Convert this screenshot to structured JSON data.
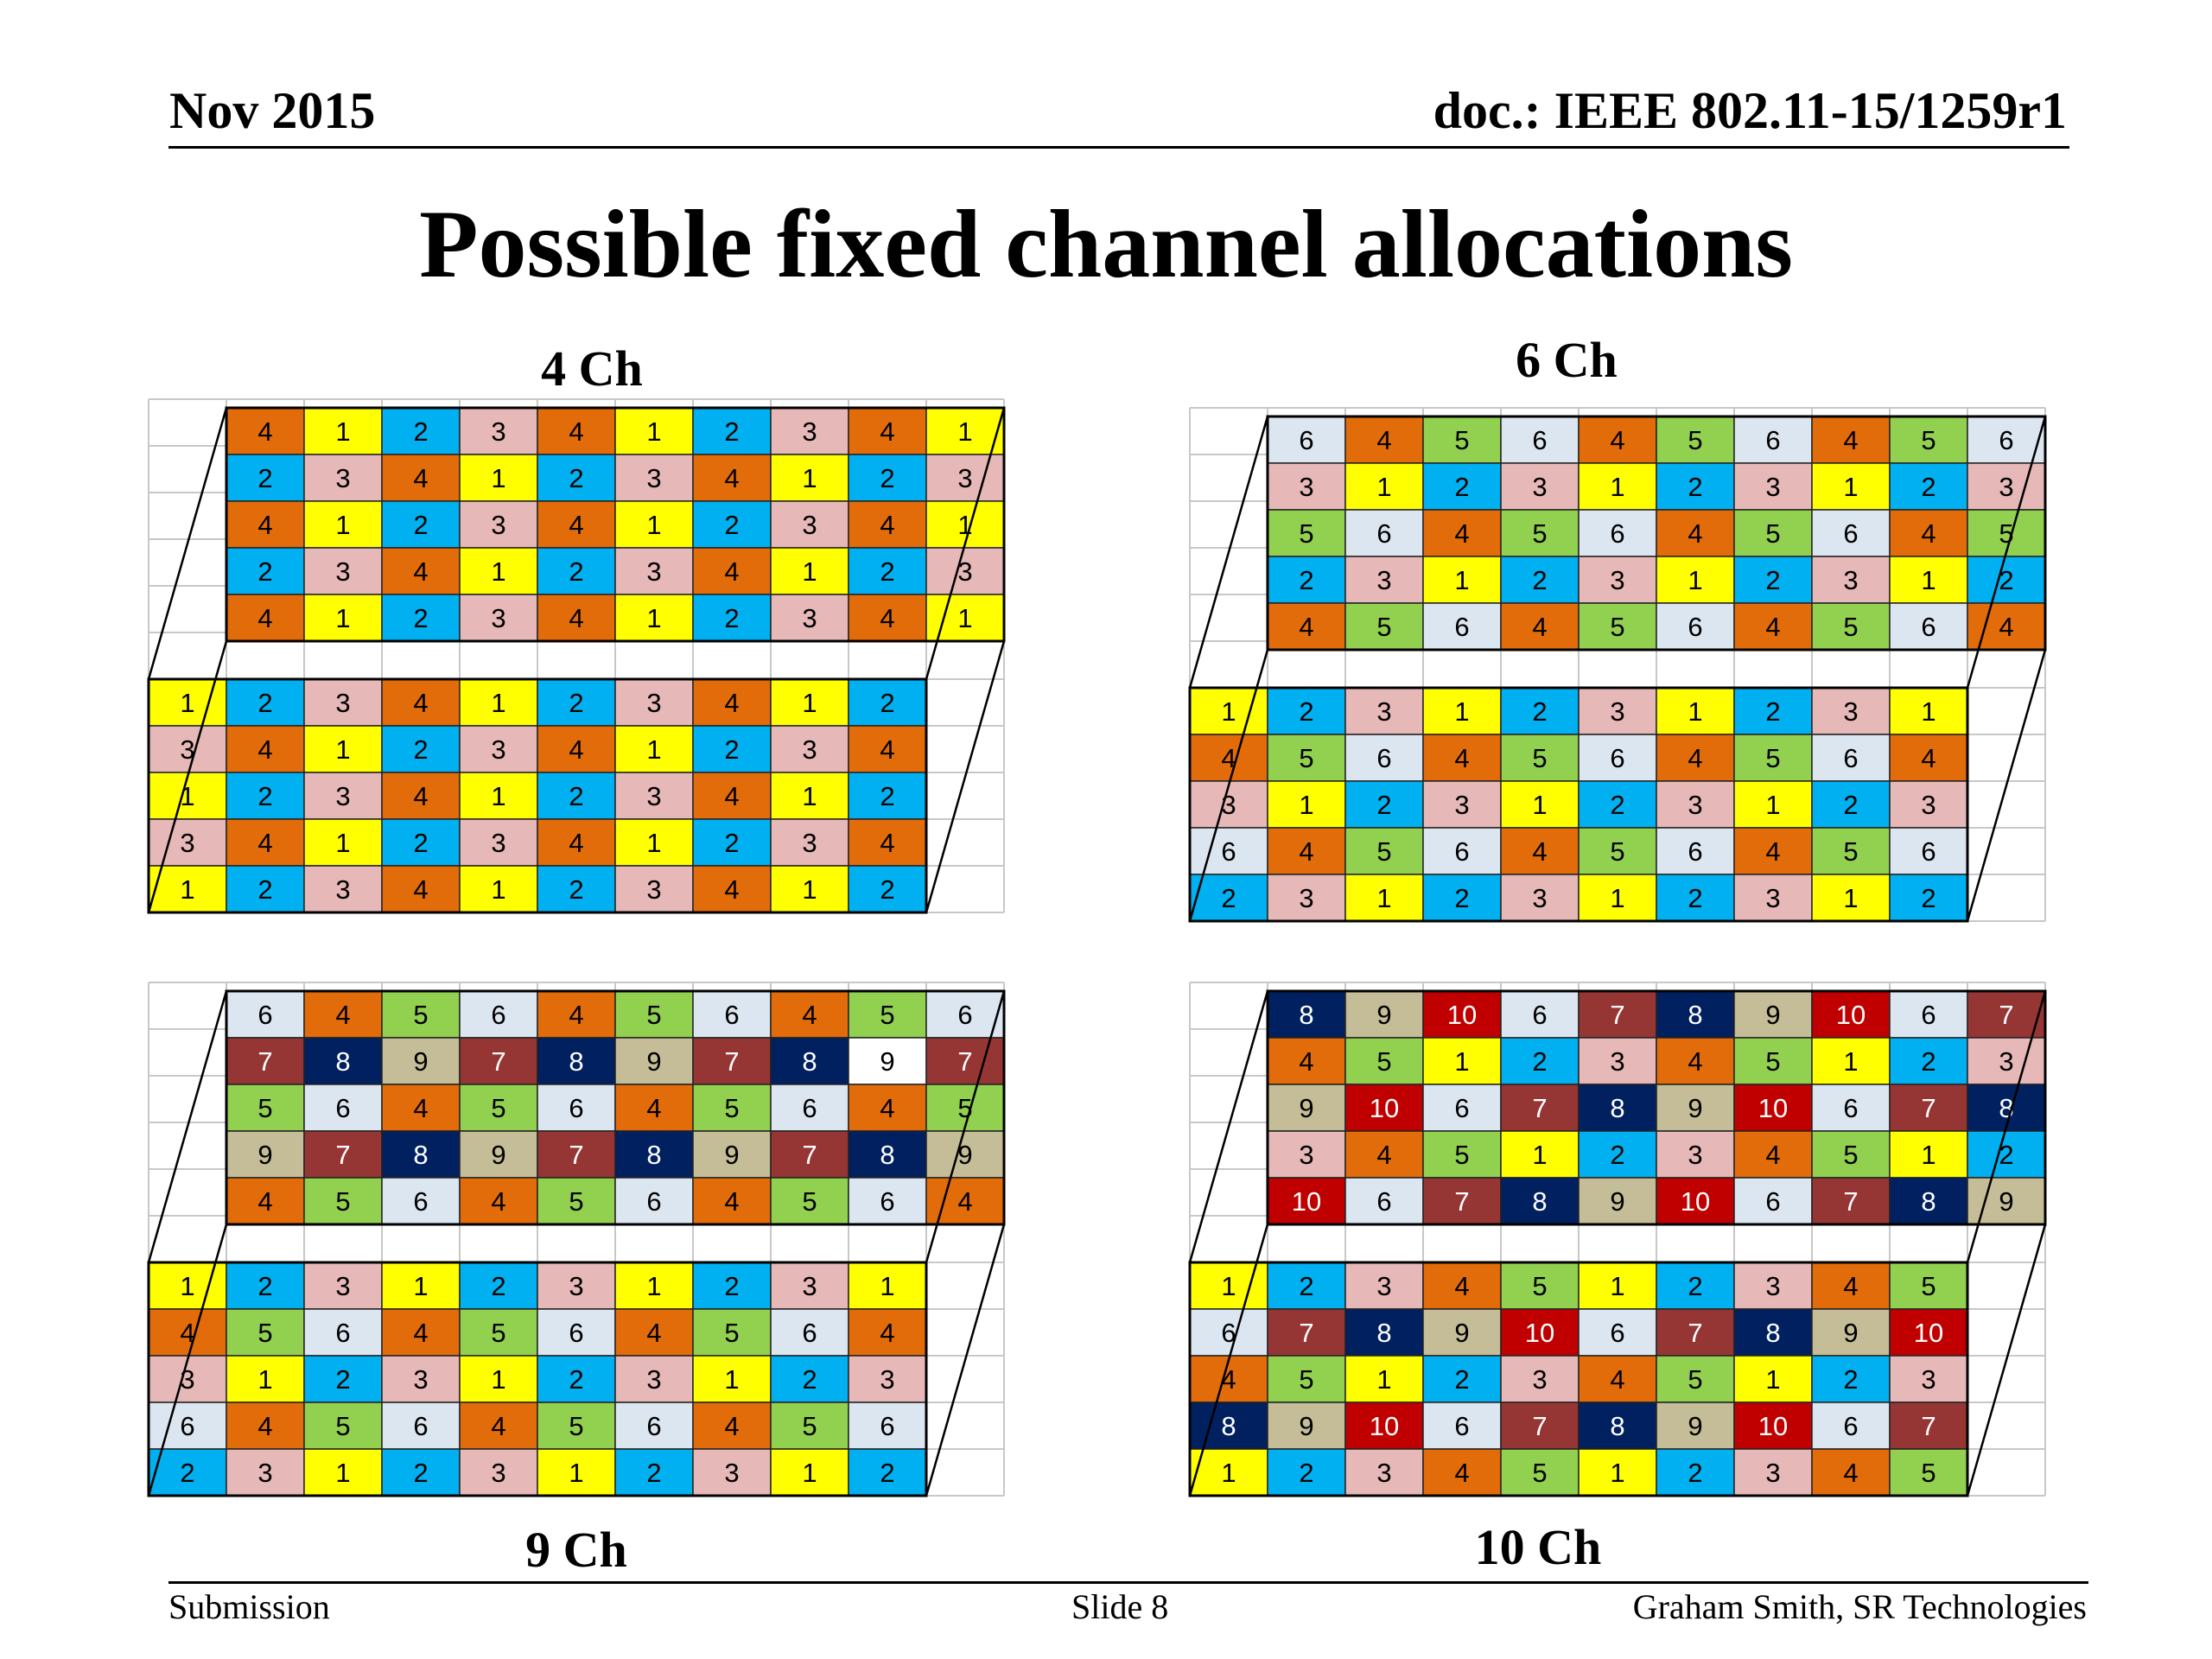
{
  "header": {
    "date": "Nov 2015",
    "doc_id": "doc.: IEEE 802.11-15/1259r1"
  },
  "title": "Possible fixed channel allocations",
  "footer": {
    "left": "Submission",
    "center": "Slide 8",
    "right": "Graham Smith, SR Technologies"
  },
  "colors": {
    "1": "#FFFF00",
    "2": "#00B0F0",
    "3": "#E6B8B7",
    "4": "#E26B0A",
    "5": "#92D050",
    "6": "#DCE6F1",
    "7": "#963634",
    "8": "#002060",
    "9": "#C4BD97",
    "10": "#C00000",
    "9w": "#FFFFFF"
  },
  "allocations": [
    {
      "label": "4 Ch",
      "upper": [
        [
          "4",
          "1",
          "2",
          "3",
          "4",
          "1",
          "2",
          "3",
          "4",
          "1"
        ],
        [
          "2",
          "3",
          "4",
          "1",
          "2",
          "3",
          "4",
          "1",
          "2",
          "3"
        ],
        [
          "4",
          "1",
          "2",
          "3",
          "4",
          "1",
          "2",
          "3",
          "4",
          "1"
        ],
        [
          "2",
          "3",
          "4",
          "1",
          "2",
          "3",
          "4",
          "1",
          "2",
          "3"
        ],
        [
          "4",
          "1",
          "2",
          "3",
          "4",
          "1",
          "2",
          "3",
          "4",
          "1"
        ]
      ],
      "lower": [
        [
          "1",
          "2",
          "3",
          "4",
          "1",
          "2",
          "3",
          "4",
          "1",
          "2"
        ],
        [
          "3",
          "4",
          "1",
          "2",
          "3",
          "4",
          "1",
          "2",
          "3",
          "4"
        ],
        [
          "1",
          "2",
          "3",
          "4",
          "1",
          "2",
          "3",
          "4",
          "1",
          "2"
        ],
        [
          "3",
          "4",
          "1",
          "2",
          "3",
          "4",
          "1",
          "2",
          "3",
          "4"
        ],
        [
          "1",
          "2",
          "3",
          "4",
          "1",
          "2",
          "3",
          "4",
          "1",
          "2"
        ]
      ]
    },
    {
      "label": "6 Ch",
      "upper": [
        [
          "6",
          "4",
          "5",
          "6",
          "4",
          "5",
          "6",
          "4",
          "5",
          "6"
        ],
        [
          "3",
          "1",
          "2",
          "3",
          "1",
          "2",
          "3",
          "1",
          "2",
          "3"
        ],
        [
          "5",
          "6",
          "4",
          "5",
          "6",
          "4",
          "5",
          "6",
          "4",
          "5"
        ],
        [
          "2",
          "3",
          "1",
          "2",
          "3",
          "1",
          "2",
          "3",
          "1",
          "2"
        ],
        [
          "4",
          "5",
          "6",
          "4",
          "5",
          "6",
          "4",
          "5",
          "6",
          "4"
        ]
      ],
      "lower": [
        [
          "1",
          "2",
          "3",
          "1",
          "2",
          "3",
          "1",
          "2",
          "3",
          "1"
        ],
        [
          "4",
          "5",
          "6",
          "4",
          "5",
          "6",
          "4",
          "5",
          "6",
          "4"
        ],
        [
          "3",
          "1",
          "2",
          "3",
          "1",
          "2",
          "3",
          "1",
          "2",
          "3"
        ],
        [
          "6",
          "4",
          "5",
          "6",
          "4",
          "5",
          "6",
          "4",
          "5",
          "6"
        ],
        [
          "2",
          "3",
          "1",
          "2",
          "3",
          "1",
          "2",
          "3",
          "1",
          "2"
        ]
      ]
    },
    {
      "label": "9 Ch",
      "upper": [
        [
          "6",
          "4",
          "5",
          "6",
          "4",
          "5",
          "6",
          "4",
          "5",
          "6"
        ],
        [
          "7",
          "8",
          "9",
          "7",
          "8",
          "9",
          "7",
          "8",
          "9w",
          "7"
        ],
        [
          "5",
          "6",
          "4",
          "5",
          "6",
          "4",
          "5",
          "6",
          "4",
          "5"
        ],
        [
          "9",
          "7",
          "8",
          "9",
          "7",
          "8",
          "9",
          "7",
          "8",
          "9"
        ],
        [
          "4",
          "5",
          "6",
          "4",
          "5",
          "6",
          "4",
          "5",
          "6",
          "4"
        ]
      ],
      "lower": [
        [
          "1",
          "2",
          "3",
          "1",
          "2",
          "3",
          "1",
          "2",
          "3",
          "1"
        ],
        [
          "4",
          "5",
          "6",
          "4",
          "5",
          "6",
          "4",
          "5",
          "6",
          "4"
        ],
        [
          "3",
          "1",
          "2",
          "3",
          "1",
          "2",
          "3",
          "1",
          "2",
          "3"
        ],
        [
          "6",
          "4",
          "5",
          "6",
          "4",
          "5",
          "6",
          "4",
          "5",
          "6"
        ],
        [
          "2",
          "3",
          "1",
          "2",
          "3",
          "1",
          "2",
          "3",
          "1",
          "2"
        ]
      ]
    },
    {
      "label": "10 Ch",
      "upper": [
        [
          "8",
          "9",
          "10",
          "6",
          "7",
          "8",
          "9",
          "10",
          "6",
          "7"
        ],
        [
          "4",
          "5",
          "1",
          "2",
          "3",
          "4",
          "5",
          "1",
          "2",
          "3"
        ],
        [
          "9",
          "10",
          "6",
          "7",
          "8",
          "9",
          "10",
          "6",
          "7",
          "8"
        ],
        [
          "3",
          "4",
          "5",
          "1",
          "2",
          "3",
          "4",
          "5",
          "1",
          "2"
        ],
        [
          "10",
          "6",
          "7",
          "8",
          "9",
          "10",
          "6",
          "7",
          "8",
          "9"
        ]
      ],
      "lower": [
        [
          "1",
          "2",
          "3",
          "4",
          "5",
          "1",
          "2",
          "3",
          "4",
          "5"
        ],
        [
          "6",
          "7",
          "8",
          "9",
          "10",
          "6",
          "7",
          "8",
          "9",
          "10"
        ],
        [
          "4",
          "5",
          "1",
          "2",
          "3",
          "4",
          "5",
          "1",
          "2",
          "3"
        ],
        [
          "8",
          "9",
          "10",
          "6",
          "7",
          "8",
          "9",
          "10",
          "6",
          "7"
        ],
        [
          "1",
          "2",
          "3",
          "4",
          "5",
          "1",
          "2",
          "3",
          "4",
          "5"
        ]
      ]
    }
  ]
}
